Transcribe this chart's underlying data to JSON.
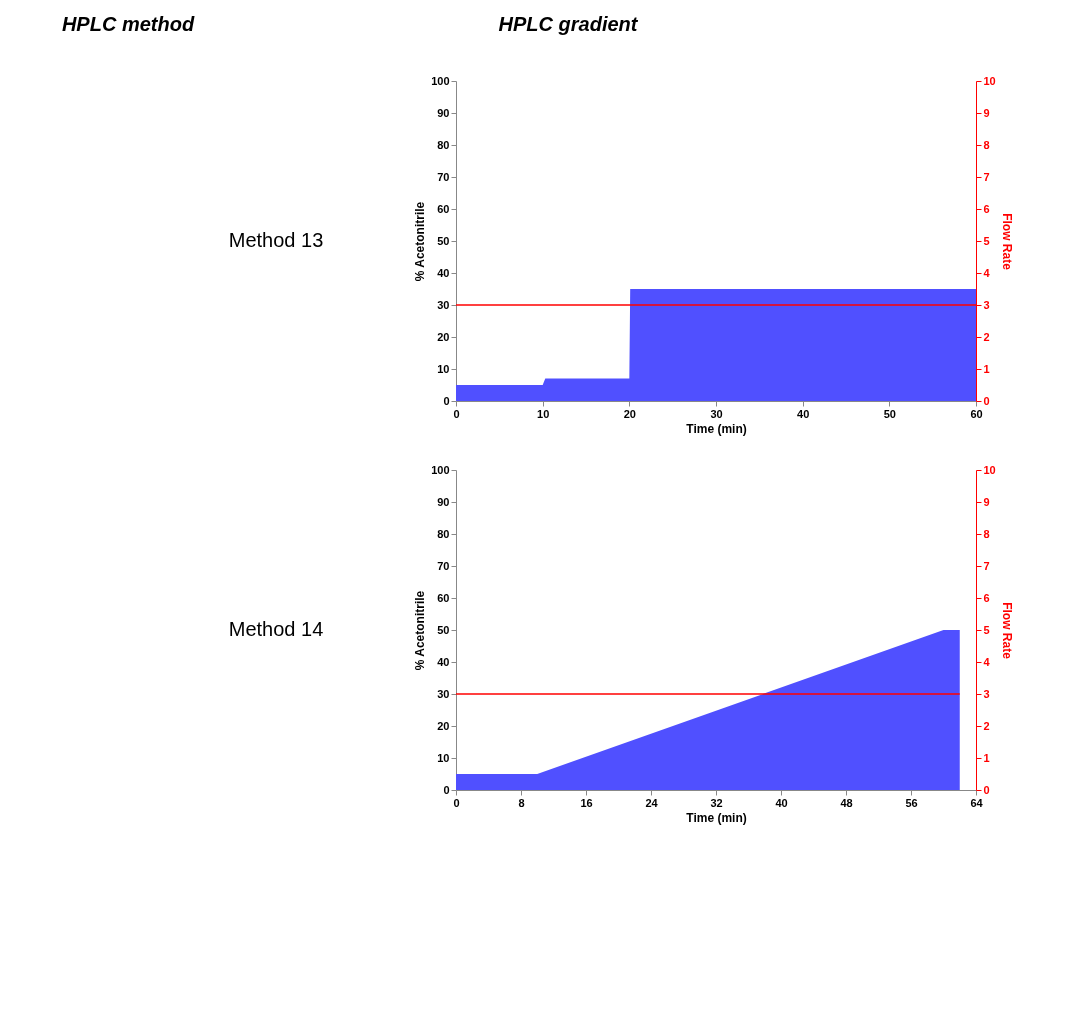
{
  "chart_data": [
    {
      "type": "area",
      "title": "Method 13",
      "annotations": [
        "HPLC method",
        "HPLC gradient"
      ],
      "xlabel": "Time (min)",
      "ylabel": "% Acetonitrile",
      "y2label": "Flow Rate",
      "grid": false,
      "xlim": [
        0,
        60
      ],
      "xticks": [
        0,
        10,
        20,
        30,
        40,
        50,
        60
      ],
      "ylim": [
        0,
        100
      ],
      "yticks": [
        0,
        10,
        20,
        30,
        40,
        50,
        60,
        70,
        80,
        90,
        100
      ],
      "y2lim": [
        0,
        10
      ],
      "y2ticks": [
        0,
        1,
        2,
        3,
        4,
        5,
        6,
        7,
        8,
        9,
        10
      ],
      "series": [
        {
          "color": "#5050ff",
          "x": [
            0,
            10,
            10.3,
            20,
            20.1,
            60
          ],
          "values": [
            5,
            5,
            7,
            7,
            35,
            35
          ]
        },
        {
          "type": "line",
          "axis": "y2",
          "color": "#ff0000",
          "x": [
            0,
            60
          ],
          "values": [
            3,
            3
          ]
        }
      ]
    },
    {
      "type": "area",
      "title": "Method 14",
      "xlabel": "Time (min)",
      "ylabel": "% Acetonitrile",
      "y2label": "Flow Rate",
      "grid": false,
      "xlim": [
        0,
        64
      ],
      "xticks": [
        0,
        8,
        16,
        24,
        32,
        40,
        48,
        56,
        64
      ],
      "ylim": [
        0,
        100
      ],
      "yticks": [
        0,
        10,
        20,
        30,
        40,
        50,
        60,
        70,
        80,
        90,
        100
      ],
      "y2lim": [
        0,
        10
      ],
      "y2ticks": [
        0,
        1,
        2,
        3,
        4,
        5,
        6,
        7,
        8,
        9,
        10
      ],
      "series": [
        {
          "color": "#5050ff",
          "x": [
            0,
            10,
            60,
            62
          ],
          "values": [
            5,
            5,
            50,
            50
          ]
        },
        {
          "type": "line",
          "axis": "y2",
          "color": "#ff0000",
          "x": [
            0,
            62
          ],
          "values": [
            3,
            3
          ]
        }
      ]
    }
  ]
}
